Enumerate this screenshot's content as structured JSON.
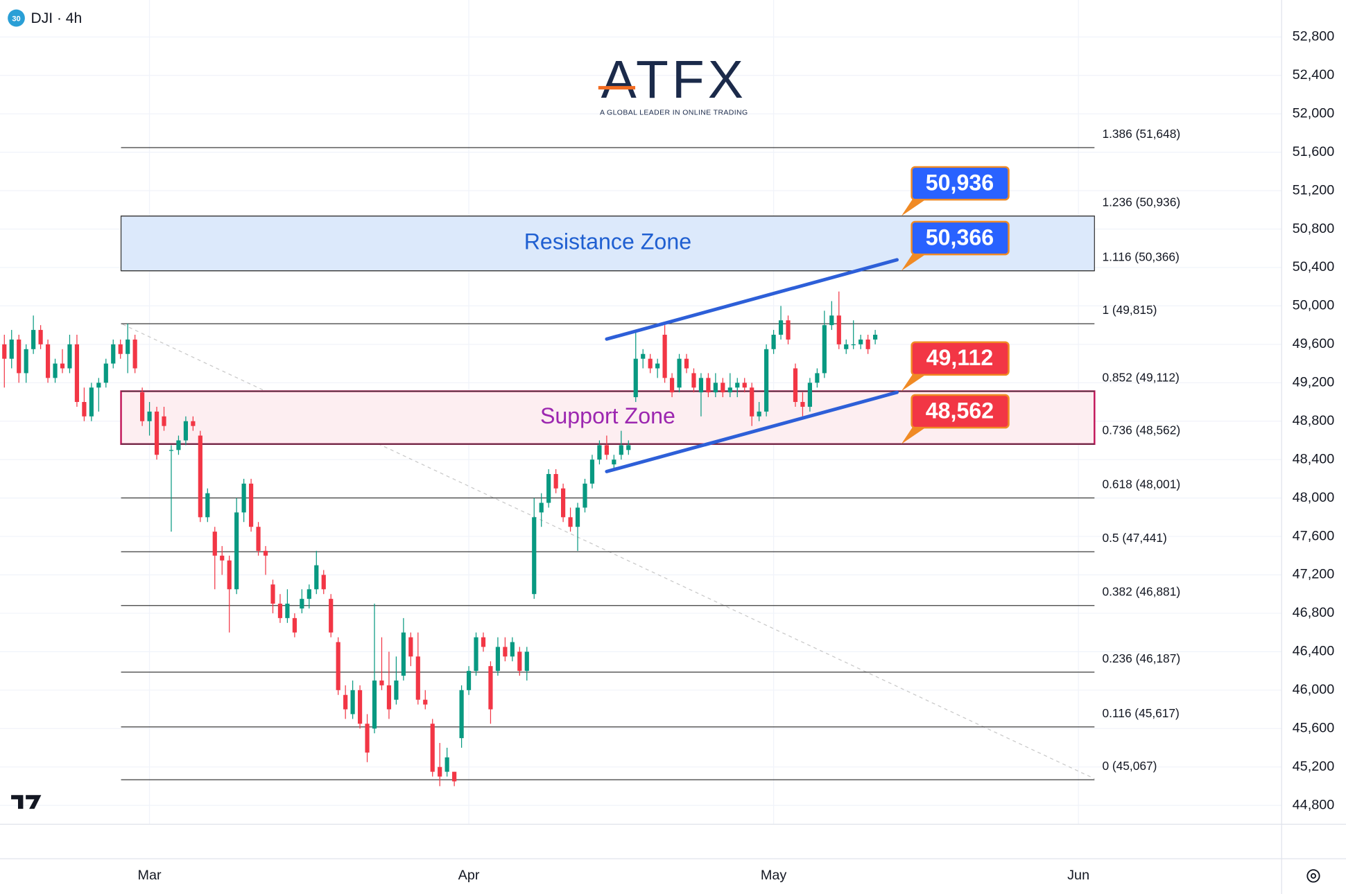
{
  "header": {
    "badge": "30",
    "symbol": "DJI · 4h"
  },
  "logo": {
    "name": "ATFX",
    "tagline": "A GLOBAL LEADER IN ONLINE TRADING"
  },
  "chart_data": {
    "type": "candlestick",
    "series": [
      {
        "open": [
          49600,
          49450,
          49650,
          49300,
          49550,
          49750,
          49600,
          49250,
          49400,
          49350,
          49600,
          49000,
          48850,
          49150,
          49200,
          49400,
          49600,
          49500,
          49650,
          49100,
          48800,
          48900,
          48850,
          48500,
          48500,
          48600,
          48800,
          48650,
          47800,
          47650,
          47400,
          47350,
          47050,
          47850,
          48150,
          47700,
          47450,
          47100,
          46900,
          46750,
          46750,
          46850,
          46950,
          47050,
          47200,
          46950,
          46500,
          45950,
          45750,
          46000,
          45650,
          45600,
          46100,
          46050,
          45900,
          46150,
          46550,
          46350,
          45900,
          45650,
          45200,
          45150,
          45150,
          45500,
          46000,
          46200,
          46550,
          46250,
          46200,
          46450,
          46350,
          46400,
          46200,
          47000,
          47850,
          47950,
          48250,
          48100,
          47800,
          47700,
          47900,
          48150,
          48400,
          48550,
          48350,
          48450,
          48500,
          49050,
          49450,
          49450,
          49350,
          49700,
          49250,
          49150,
          49450,
          49300,
          49100,
          49250,
          49100,
          49200,
          49100,
          49150,
          49200,
          49150,
          48850,
          48900,
          49550,
          49700,
          49850,
          49350,
          49000,
          48950,
          49200,
          49300,
          49800,
          49900,
          49550,
          49600,
          49600,
          49650,
          49650
        ],
        "high": [
          49700,
          49750,
          49700,
          49600,
          49900,
          49800,
          49650,
          49450,
          49550,
          49700,
          49700,
          49150,
          49200,
          49250,
          49450,
          49650,
          49650,
          49815,
          49700,
          49150,
          49000,
          48950,
          48950,
          48550,
          48650,
          48850,
          48850,
          48700,
          48100,
          47700,
          47500,
          47400,
          48000,
          48200,
          48200,
          47750,
          47500,
          47150,
          47000,
          47050,
          46800,
          47050,
          47100,
          47450,
          47250,
          47000,
          46550,
          46050,
          46100,
          46050,
          45750,
          46900,
          46550,
          46400,
          46350,
          46750,
          46600,
          46600,
          46000,
          45700,
          45450,
          45400,
          45150,
          46050,
          46250,
          46600,
          46600,
          46300,
          46550,
          46550,
          46550,
          46450,
          46450,
          48000,
          48050,
          48300,
          48300,
          48150,
          47900,
          47950,
          48200,
          48450,
          48600,
          48650,
          48450,
          48700,
          48600,
          49750,
          49550,
          49500,
          49450,
          49800,
          49300,
          49500,
          49500,
          49350,
          49300,
          49300,
          49300,
          49250,
          49300,
          49250,
          49250,
          49200,
          49000,
          49600,
          49750,
          50000,
          49900,
          49400,
          49100,
          49250,
          49350,
          49950,
          50050,
          50150,
          49650,
          49850,
          49700,
          49700,
          49750
        ],
        "low": [
          49150,
          49350,
          49200,
          49200,
          49500,
          49550,
          49200,
          49200,
          49300,
          49300,
          48950,
          48800,
          48800,
          48900,
          49150,
          49350,
          49450,
          49300,
          49300,
          48750,
          48650,
          48400,
          48700,
          47650,
          48450,
          48550,
          48700,
          47750,
          47750,
          47050,
          47200,
          46600,
          47000,
          47750,
          47650,
          47400,
          47200,
          46800,
          46700,
          46700,
          46550,
          46800,
          46850,
          47000,
          47000,
          46550,
          45950,
          45700,
          45700,
          45600,
          45250,
          45550,
          46000,
          45700,
          45850,
          46100,
          46250,
          45850,
          45800,
          45100,
          45000,
          45100,
          45000,
          45400,
          45950,
          46150,
          46400,
          45650,
          46150,
          46300,
          46300,
          46150,
          46100,
          46950,
          47700,
          47900,
          48050,
          47750,
          47650,
          47450,
          47850,
          48100,
          48350,
          48400,
          48300,
          48400,
          48450,
          49000,
          49350,
          49300,
          49250,
          49200,
          49050,
          49100,
          49300,
          49100,
          48850,
          49050,
          49050,
          49050,
          49050,
          49050,
          49100,
          48750,
          48800,
          48850,
          49500,
          49650,
          49600,
          48950,
          48850,
          48900,
          49150,
          49250,
          49750,
          49550,
          49500,
          49550,
          49550,
          49500,
          49600
        ],
        "close": [
          49450,
          49650,
          49300,
          49550,
          49750,
          49600,
          49250,
          49400,
          49350,
          49600,
          49000,
          48850,
          49150,
          49200,
          49400,
          49600,
          49500,
          49650,
          49350,
          48800,
          48900,
          48450,
          48750,
          48500,
          48600,
          48800,
          48750,
          47800,
          48050,
          47400,
          47350,
          47050,
          47850,
          48150,
          47700,
          47450,
          47400,
          46900,
          46750,
          46900,
          46600,
          46950,
          47050,
          47300,
          47050,
          46600,
          46000,
          45800,
          46000,
          45650,
          45350,
          46100,
          46050,
          45800,
          46100,
          46600,
          46350,
          45900,
          45850,
          45150,
          45100,
          45300,
          45050,
          46000,
          46200,
          46550,
          46450,
          45800,
          46450,
          46350,
          46500,
          46200,
          46400,
          47800,
          47950,
          48250,
          48100,
          47800,
          47700,
          47900,
          48150,
          48400,
          48550,
          48450,
          48400,
          48550,
          48550,
          49450,
          49500,
          49350,
          49400,
          49250,
          49100,
          49450,
          49350,
          49150,
          49250,
          49100,
          49200,
          49100,
          49150,
          49200,
          49150,
          48850,
          48900,
          49550,
          49700,
          49850,
          49650,
          49000,
          48950,
          49200,
          49300,
          49800,
          49900,
          49600,
          49600,
          49600,
          49650,
          49550,
          49700
        ]
      }
    ],
    "up_color": "#089981",
    "down_color": "#f23645",
    "xlim": [
      -0.6,
      176
    ],
    "xticks": [
      {
        "value": 20,
        "label": "Mar"
      },
      {
        "value": 64,
        "label": "Apr"
      },
      {
        "value": 106,
        "label": "May"
      },
      {
        "value": 148,
        "label": "Jun"
      }
    ],
    "ylim": [
      44603,
      53185
    ],
    "yticks": [
      {
        "value": 44800,
        "label": "44,800"
      },
      {
        "value": 45200,
        "label": "45,200"
      },
      {
        "value": 45600,
        "label": "45,600"
      },
      {
        "value": 46000,
        "label": "46,000"
      },
      {
        "value": 46400,
        "label": "46,400"
      },
      {
        "value": 46800,
        "label": "46,800"
      },
      {
        "value": 47200,
        "label": "47,200"
      },
      {
        "value": 47600,
        "label": "47,600"
      },
      {
        "value": 48000,
        "label": "48,000"
      },
      {
        "value": 48400,
        "label": "48,400"
      },
      {
        "value": 48800,
        "label": "48,800"
      },
      {
        "value": 49200,
        "label": "49,200"
      },
      {
        "value": 49600,
        "label": "49,600"
      },
      {
        "value": 50000,
        "label": "50,000"
      },
      {
        "value": 50400,
        "label": "50,400"
      },
      {
        "value": 50800,
        "label": "50,800"
      },
      {
        "value": 51200,
        "label": "51,200"
      },
      {
        "value": 51600,
        "label": "51,600"
      },
      {
        "value": 52000,
        "label": "52,000"
      },
      {
        "value": 52400,
        "label": "52,400"
      },
      {
        "value": 52800,
        "label": "52,800"
      }
    ],
    "grid": true,
    "fib_levels": [
      {
        "value": 51648,
        "label": "1.386 (51,648)"
      },
      {
        "value": 50936,
        "label": "1.236 (50,936)"
      },
      {
        "value": 50366,
        "label": "1.116 (50,366)"
      },
      {
        "value": 49815,
        "label": "1 (49,815)"
      },
      {
        "value": 49112,
        "label": "0.852 (49,112)"
      },
      {
        "value": 48562,
        "label": "0.736 (48,562)"
      },
      {
        "value": 48001,
        "label": "0.618 (48,001)"
      },
      {
        "value": 47441,
        "label": "0.5 (47,441)"
      },
      {
        "value": 46881,
        "label": "0.382 (46,881)"
      },
      {
        "value": 46187,
        "label": "0.236 (46,187)"
      },
      {
        "value": 45617,
        "label": "0.116 (45,617)"
      },
      {
        "value": 45067,
        "label": "0 (45,067)"
      }
    ],
    "zones": [
      {
        "label": "Resistance Zone",
        "range": [
          50366,
          50936
        ],
        "color": "#1f5fd1",
        "fill": "#dce9fb",
        "border": "#333333"
      },
      {
        "label": "Support Zone",
        "range": [
          48562,
          49112
        ],
        "color": "#9c27b0",
        "fill": "#fdeef1",
        "border": "#c2185b"
      }
    ],
    "callouts": [
      {
        "value": 50936,
        "label": "50,936",
        "color": "#2962ff"
      },
      {
        "value": 50366,
        "label": "50,366",
        "color": "#2962ff"
      },
      {
        "value": 49112,
        "label": "49,112",
        "color": "#f23645"
      },
      {
        "value": 48562,
        "label": "48,562",
        "color": "#f23645"
      }
    ],
    "trendlines": [
      {
        "x": [
          83,
          123
        ],
        "y": [
          49655,
          50480
        ],
        "color": "#2d5fd8"
      },
      {
        "x": [
          83,
          123
        ],
        "y": [
          48276,
          49100
        ],
        "color": "#2d5fd8"
      }
    ]
  }
}
